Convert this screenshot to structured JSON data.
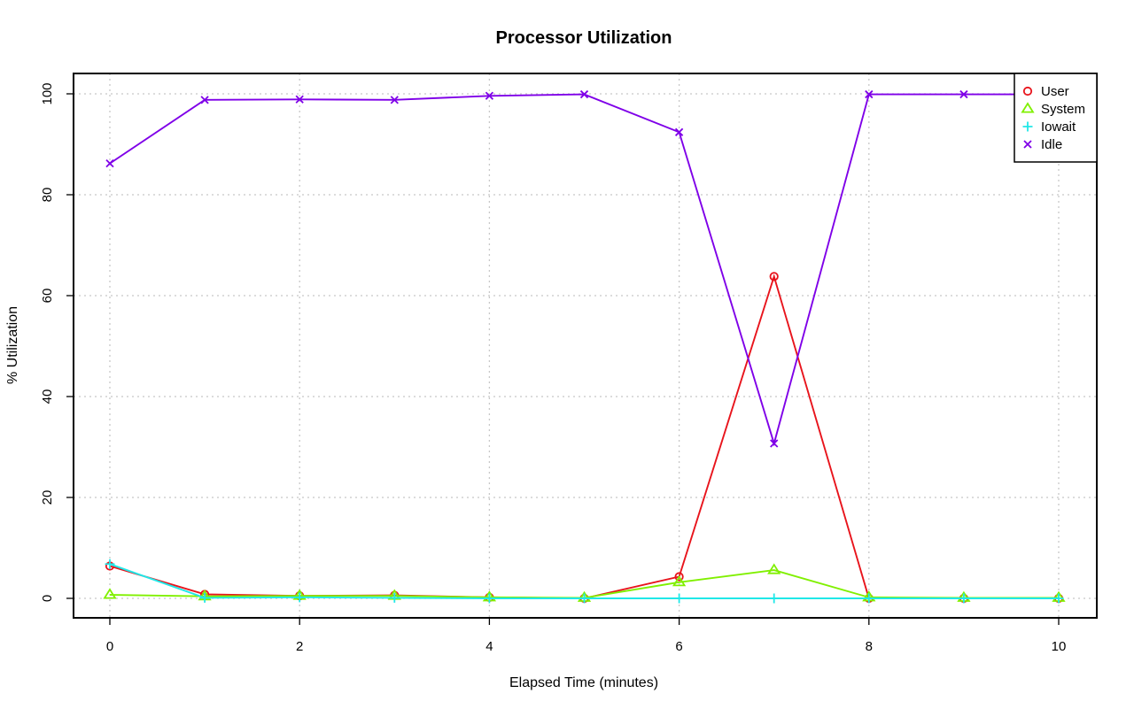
{
  "chart_data": {
    "type": "line",
    "title": "Processor Utilization",
    "xlabel": "Elapsed Time (minutes)",
    "ylabel": "% Utilization",
    "x": [
      0,
      1,
      2,
      3,
      4,
      5,
      6,
      7,
      8,
      9,
      10
    ],
    "xlim": [
      0,
      10
    ],
    "ylim": [
      0,
      100
    ],
    "x_ticks": [
      0,
      2,
      4,
      6,
      8,
      10
    ],
    "y_ticks": [
      0,
      20,
      40,
      60,
      80,
      100
    ],
    "grid": true,
    "legend_position": "top-right",
    "series": [
      {
        "name": "User",
        "color": "#e8141c",
        "marker": "circle",
        "values": [
          6.4,
          0.8,
          0.5,
          0.6,
          0.2,
          0.0,
          4.3,
          63.8,
          0.0,
          0.0,
          0.0
        ]
      },
      {
        "name": "System",
        "color": "#80f000",
        "marker": "triangle",
        "values": [
          0.7,
          0.4,
          0.5,
          0.5,
          0.2,
          0.1,
          3.2,
          5.6,
          0.2,
          0.1,
          0.1
        ]
      },
      {
        "name": "Iowait",
        "color": "#20e8e8",
        "marker": "plus",
        "values": [
          6.8,
          0.1,
          0.2,
          0.1,
          0.0,
          0.0,
          0.0,
          0.0,
          0.0,
          0.0,
          0.0
        ]
      },
      {
        "name": "Idle",
        "color": "#7f00e8",
        "marker": "cross",
        "values": [
          86.2,
          98.8,
          98.9,
          98.8,
          99.6,
          99.9,
          92.4,
          30.7,
          99.9,
          99.9,
          99.9
        ]
      }
    ]
  }
}
